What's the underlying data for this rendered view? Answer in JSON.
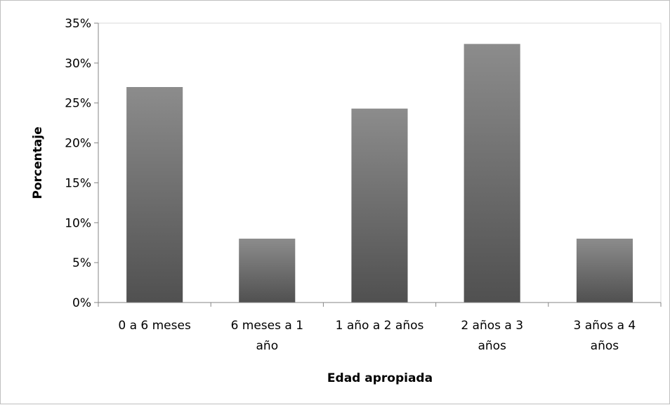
{
  "chart_data": {
    "type": "bar",
    "title": "",
    "xlabel": "Edad apropiada",
    "ylabel": "Porcentaje",
    "categories": [
      [
        "0 a 6 meses"
      ],
      [
        "6 meses a 1",
        "año"
      ],
      [
        "1 año a 2 años"
      ],
      [
        "2 años a 3",
        "años"
      ],
      [
        "3 años a 4",
        "años"
      ]
    ],
    "values": [
      27,
      8,
      24.3,
      32.4,
      8
    ],
    "ylim": [
      0,
      35
    ],
    "yticks": [
      0,
      5,
      10,
      15,
      20,
      25,
      30,
      35
    ],
    "ytick_labels": [
      "0%",
      "5%",
      "10%",
      "15%",
      "20%",
      "25%",
      "30%",
      "35%"
    ],
    "grid": false,
    "legend": "none",
    "colors": {
      "bar_top": "#8c8c8c",
      "bar_bottom": "#505050",
      "axis": "#868686"
    }
  }
}
